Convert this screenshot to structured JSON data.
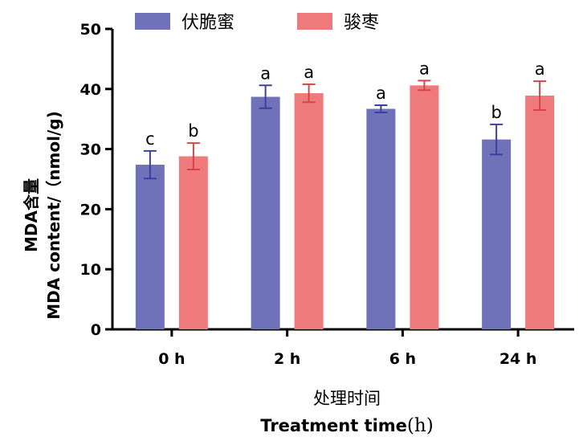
{
  "chart_data": {
    "type": "bar",
    "categories": [
      "0 h",
      "2 h",
      "6 h",
      "24 h"
    ],
    "series": [
      {
        "name": "伏脆蜜",
        "color": "#6f72b8",
        "values": [
          27.4,
          38.7,
          36.7,
          31.6
        ],
        "errors": [
          2.3,
          1.9,
          0.6,
          2.5
        ],
        "letters": [
          "c",
          "a",
          "a",
          "b"
        ]
      },
      {
        "name": "骏枣",
        "color": "#ef7a7c",
        "values": [
          28.8,
          39.3,
          40.6,
          38.9
        ],
        "errors": [
          2.2,
          1.5,
          0.8,
          2.4
        ],
        "letters": [
          "b",
          "a",
          "a",
          "a"
        ]
      }
    ],
    "ylim": [
      0,
      50
    ],
    "yticks": [
      0,
      10,
      20,
      30,
      40,
      50
    ],
    "ylabel_line1": "MDA含量",
    "ylabel_line2": "MDA content/（nmol/g)",
    "xlabel_cn": "处理时间",
    "xlabel_en": "Treatment time",
    "xlabel_unit": "(h)",
    "legend_position": "top-left",
    "grid": false
  }
}
